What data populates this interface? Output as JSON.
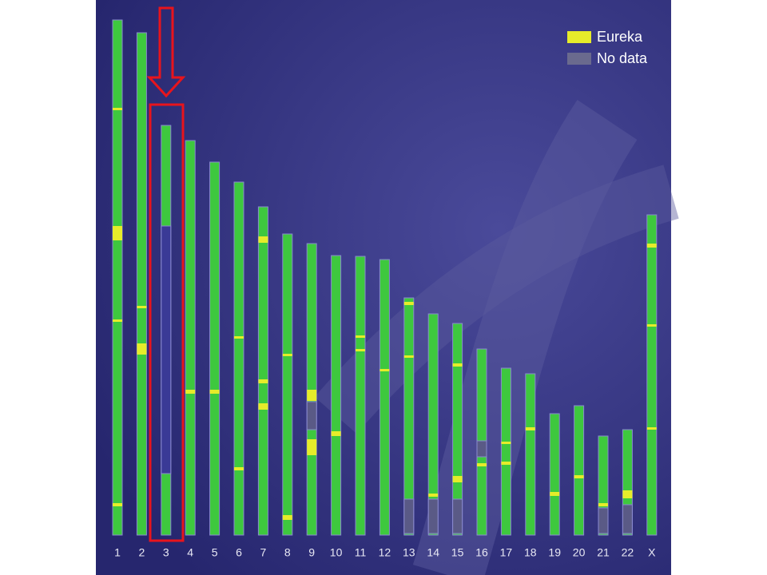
{
  "legend": {
    "items": [
      {
        "label": "Eureka"
      },
      {
        "label": "No data"
      }
    ]
  },
  "chromosomes": {
    "labels": [
      "1",
      "2",
      "3",
      "4",
      "5",
      "6",
      "7",
      "8",
      "9",
      "10",
      "11",
      "12",
      "13",
      "14",
      "15",
      "16",
      "17",
      "18",
      "19",
      "20",
      "21",
      "22",
      "X"
    ]
  }
}
